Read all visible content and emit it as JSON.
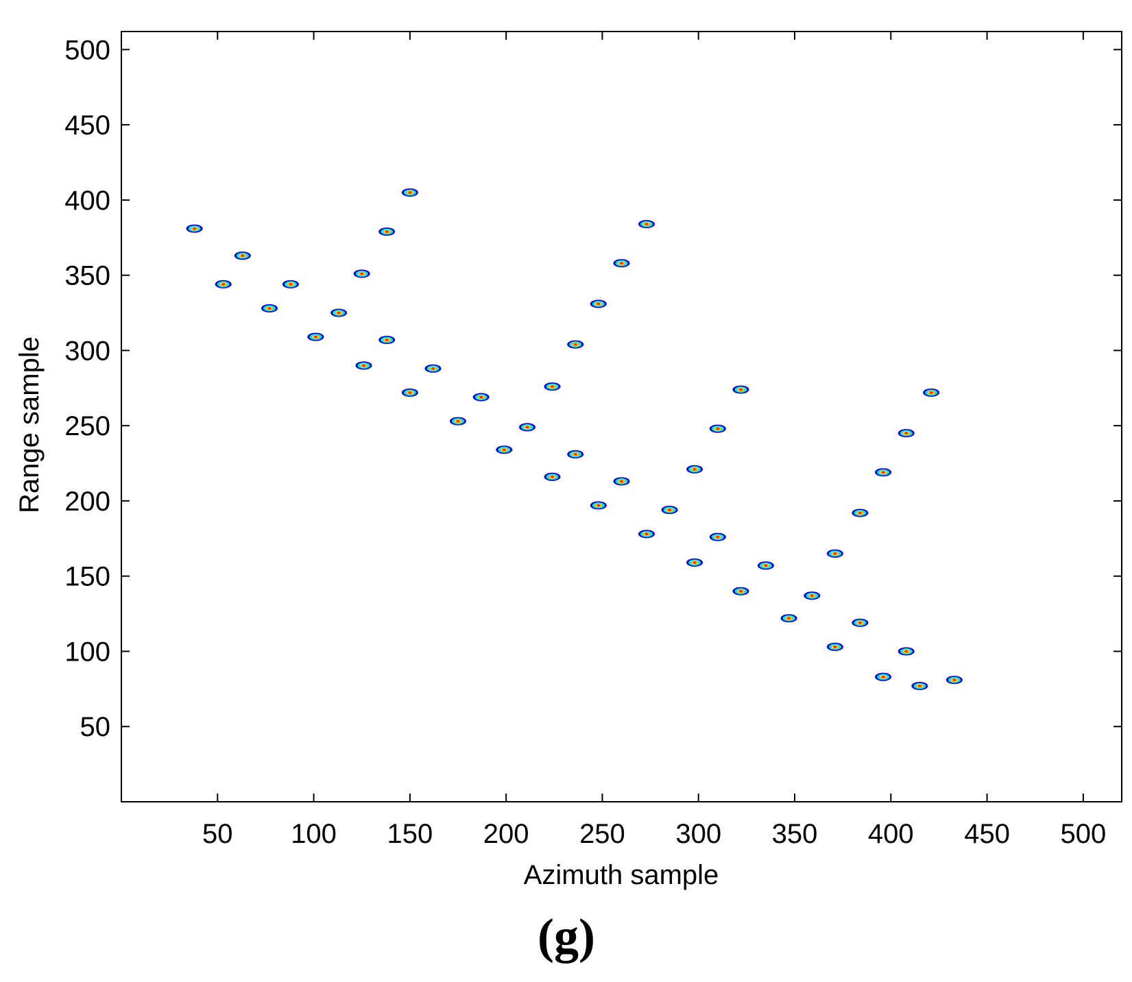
{
  "panel_label": "(g)",
  "chart_data": {
    "type": "scatter",
    "title": "",
    "xlabel": "Azimuth sample",
    "ylabel": "Range sample",
    "xlim": [
      0,
      520
    ],
    "ylim": [
      0,
      512
    ],
    "xticks": [
      50,
      100,
      150,
      200,
      250,
      300,
      350,
      400,
      450,
      500
    ],
    "yticks": [
      50,
      100,
      150,
      200,
      250,
      300,
      350,
      400,
      450,
      500
    ],
    "grid": false,
    "legend": "none",
    "colors": {
      "outer": "#0000cc",
      "mid": "#00e5ff",
      "inner": "#ffcc00",
      "core": "#ff2200"
    },
    "points": [
      {
        "x": 38,
        "y": 381
      },
      {
        "x": 53,
        "y": 344
      },
      {
        "x": 63,
        "y": 363
      },
      {
        "x": 77,
        "y": 328
      },
      {
        "x": 88,
        "y": 344
      },
      {
        "x": 101,
        "y": 309
      },
      {
        "x": 113,
        "y": 325
      },
      {
        "x": 125,
        "y": 351
      },
      {
        "x": 126,
        "y": 290
      },
      {
        "x": 138,
        "y": 379
      },
      {
        "x": 138,
        "y": 307
      },
      {
        "x": 150,
        "y": 405
      },
      {
        "x": 150,
        "y": 272
      },
      {
        "x": 162,
        "y": 288
      },
      {
        "x": 175,
        "y": 253
      },
      {
        "x": 187,
        "y": 269
      },
      {
        "x": 199,
        "y": 234
      },
      {
        "x": 211,
        "y": 249
      },
      {
        "x": 224,
        "y": 216
      },
      {
        "x": 224,
        "y": 276
      },
      {
        "x": 236,
        "y": 304
      },
      {
        "x": 236,
        "y": 231
      },
      {
        "x": 248,
        "y": 331
      },
      {
        "x": 248,
        "y": 197
      },
      {
        "x": 260,
        "y": 358
      },
      {
        "x": 260,
        "y": 213
      },
      {
        "x": 273,
        "y": 384
      },
      {
        "x": 273,
        "y": 178
      },
      {
        "x": 285,
        "y": 194
      },
      {
        "x": 298,
        "y": 221
      },
      {
        "x": 298,
        "y": 159
      },
      {
        "x": 310,
        "y": 248
      },
      {
        "x": 310,
        "y": 176
      },
      {
        "x": 322,
        "y": 274
      },
      {
        "x": 322,
        "y": 140
      },
      {
        "x": 335,
        "y": 157
      },
      {
        "x": 347,
        "y": 122
      },
      {
        "x": 359,
        "y": 137
      },
      {
        "x": 371,
        "y": 165
      },
      {
        "x": 371,
        "y": 103
      },
      {
        "x": 384,
        "y": 192
      },
      {
        "x": 384,
        "y": 119
      },
      {
        "x": 396,
        "y": 219
      },
      {
        "x": 396,
        "y": 83
      },
      {
        "x": 408,
        "y": 245
      },
      {
        "x": 408,
        "y": 100
      },
      {
        "x": 415,
        "y": 77
      },
      {
        "x": 421,
        "y": 272
      },
      {
        "x": 433,
        "y": 81
      }
    ]
  }
}
